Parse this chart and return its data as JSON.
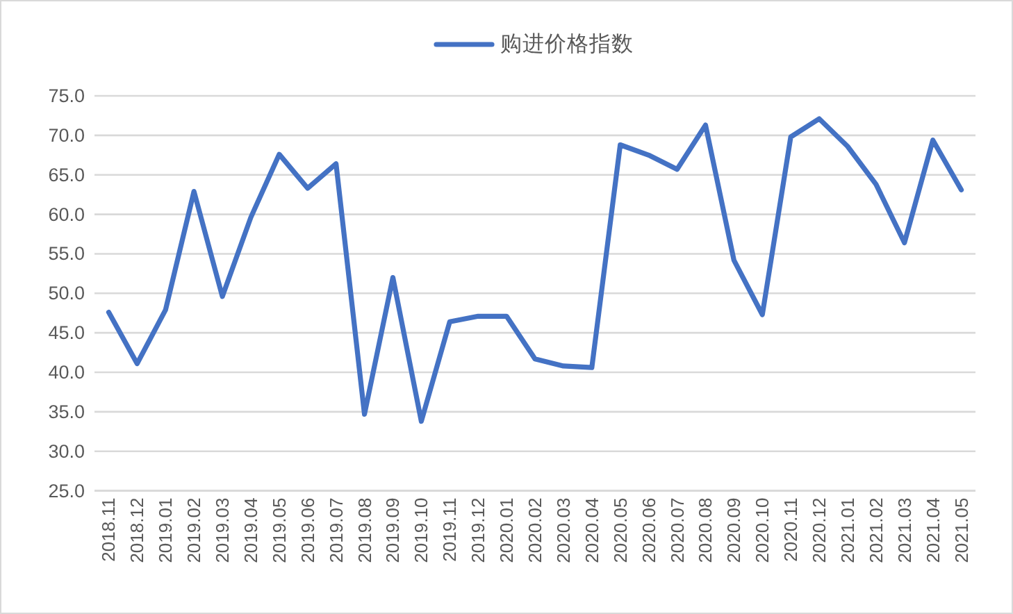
{
  "chart_data": {
    "type": "line",
    "categories": [
      "2018.11",
      "2018.12",
      "2019.01",
      "2019.02",
      "2019.03",
      "2019.04",
      "2019.05",
      "2019.06",
      "2019.07",
      "2019.08",
      "2019.09",
      "2019.10",
      "2019.11",
      "2019.12",
      "2020.01",
      "2020.02",
      "2020.03",
      "2020.04",
      "2020.05",
      "2020.06",
      "2020.07",
      "2020.08",
      "2020.09",
      "2020.10",
      "2020.11",
      "2020.12",
      "2021.01",
      "2021.02",
      "2021.03",
      "2021.04",
      "2021.05"
    ],
    "series": [
      {
        "name": "购进价格指数",
        "color": "#4472c4",
        "values": [
          47.6,
          41.1,
          47.9,
          62.9,
          49.6,
          59.6,
          67.6,
          63.3,
          66.4,
          34.7,
          52.0,
          33.8,
          46.4,
          47.1,
          47.1,
          41.7,
          40.8,
          40.6,
          68.8,
          67.5,
          65.7,
          71.3,
          54.2,
          47.3,
          69.8,
          72.1,
          68.6,
          63.8,
          56.4,
          69.4,
          63.1
        ]
      }
    ],
    "ylim": [
      25,
      75
    ],
    "yticks": [
      {
        "value": 25,
        "label": "25.0"
      },
      {
        "value": 30,
        "label": "30.0"
      },
      {
        "value": 35,
        "label": "35.0"
      },
      {
        "value": 40,
        "label": "40.0"
      },
      {
        "value": 45,
        "label": "45.0"
      },
      {
        "value": 50,
        "label": "50.0"
      },
      {
        "value": 55,
        "label": "55.0"
      },
      {
        "value": 60,
        "label": "60.0"
      },
      {
        "value": 65,
        "label": "65.0"
      },
      {
        "value": 70,
        "label": "70.0"
      },
      {
        "value": 75,
        "label": "75.0"
      }
    ],
    "grid": "y",
    "legend": "top",
    "marker": "none",
    "line_style": "solid"
  }
}
